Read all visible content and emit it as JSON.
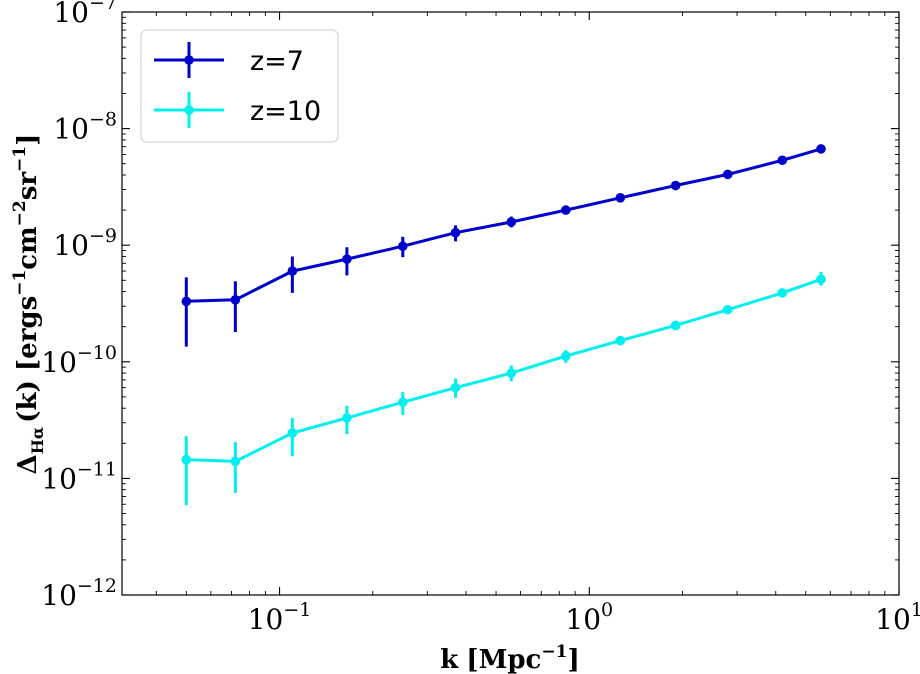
{
  "chart_data": {
    "type": "line",
    "title": "",
    "xscale": "log",
    "yscale": "log",
    "xlim": [
      0.031,
      10
    ],
    "ylim": [
      1e-12,
      1e-07
    ],
    "x": [
      0.05,
      0.072,
      0.11,
      0.165,
      0.25,
      0.37,
      0.56,
      0.84,
      1.26,
      1.9,
      2.8,
      4.2,
      5.6
    ],
    "xlabel": {
      "main": "k",
      "unit_open": "[Mpc",
      "unit_sup": "−1",
      "unit_close": "]"
    },
    "ylabel": {
      "delta": "Δ",
      "sub": "Hα",
      "rest": "(k) [ergs",
      "sup1": "−1",
      "cm": "cm",
      "sup2": "−2",
      "sr": "sr",
      "sup3": "−1",
      "close": "]"
    },
    "xticks": [
      {
        "value": 0.1,
        "base": "10",
        "exp": "−1"
      },
      {
        "value": 1,
        "base": "10",
        "exp": "0"
      },
      {
        "value": 10,
        "base": "10",
        "exp": "1"
      }
    ],
    "yticks": [
      {
        "value": 1e-12,
        "base": "10",
        "exp": "−12"
      },
      {
        "value": 1e-11,
        "base": "10",
        "exp": "−11"
      },
      {
        "value": 1e-10,
        "base": "10",
        "exp": "−10"
      },
      {
        "value": 1e-09,
        "base": "10",
        "exp": "−9"
      },
      {
        "value": 1e-08,
        "base": "10",
        "exp": "−8"
      },
      {
        "value": 1e-07,
        "base": "10",
        "exp": "−7"
      }
    ],
    "legend_position": "top-left",
    "series": [
      {
        "name": "z=7",
        "color": "#0000cd",
        "values": [
          3.3e-10,
          3.4e-10,
          6e-10,
          7.6e-10,
          9.8e-10,
          1.28e-09,
          1.58e-09,
          2e-09,
          2.55e-09,
          3.25e-09,
          4.05e-09,
          5.35e-09,
          6.7e-09
        ],
        "err_low": [
          1.35e-10,
          1.8e-10,
          3.9e-10,
          5.5e-10,
          7.9e-10,
          1.08e-09,
          1.42e-09,
          1.88e-09,
          2.47e-09,
          3.18e-09,
          3.98e-09,
          5.28e-09,
          6.62e-09
        ],
        "err_high": [
          5.3e-10,
          4.9e-10,
          8e-10,
          9.6e-10,
          1.18e-09,
          1.48e-09,
          1.76e-09,
          2.15e-09,
          2.65e-09,
          3.35e-09,
          4.15e-09,
          5.45e-09,
          6.8e-09
        ]
      },
      {
        "name": "z=10",
        "color": "#00f0f0",
        "values": [
          1.45e-11,
          1.4e-11,
          2.45e-11,
          3.3e-11,
          4.5e-11,
          6e-11,
          8e-11,
          1.12e-10,
          1.52e-10,
          2.05e-10,
          2.8e-10,
          3.9e-10,
          5.1e-10
        ],
        "err_low": [
          5.9e-12,
          7.5e-12,
          1.55e-11,
          2.4e-11,
          3.5e-11,
          4.9e-11,
          6.8e-11,
          9.8e-11,
          1.38e-10,
          1.9e-10,
          2.62e-10,
          3.65e-10,
          4.5e-10
        ],
        "err_high": [
          2.3e-11,
          2.05e-11,
          3.3e-11,
          4.2e-11,
          5.5e-11,
          7.2e-11,
          9.3e-11,
          1.26e-10,
          1.66e-10,
          2.2e-10,
          2.98e-10,
          4.15e-10,
          5.9e-10
        ]
      }
    ]
  }
}
